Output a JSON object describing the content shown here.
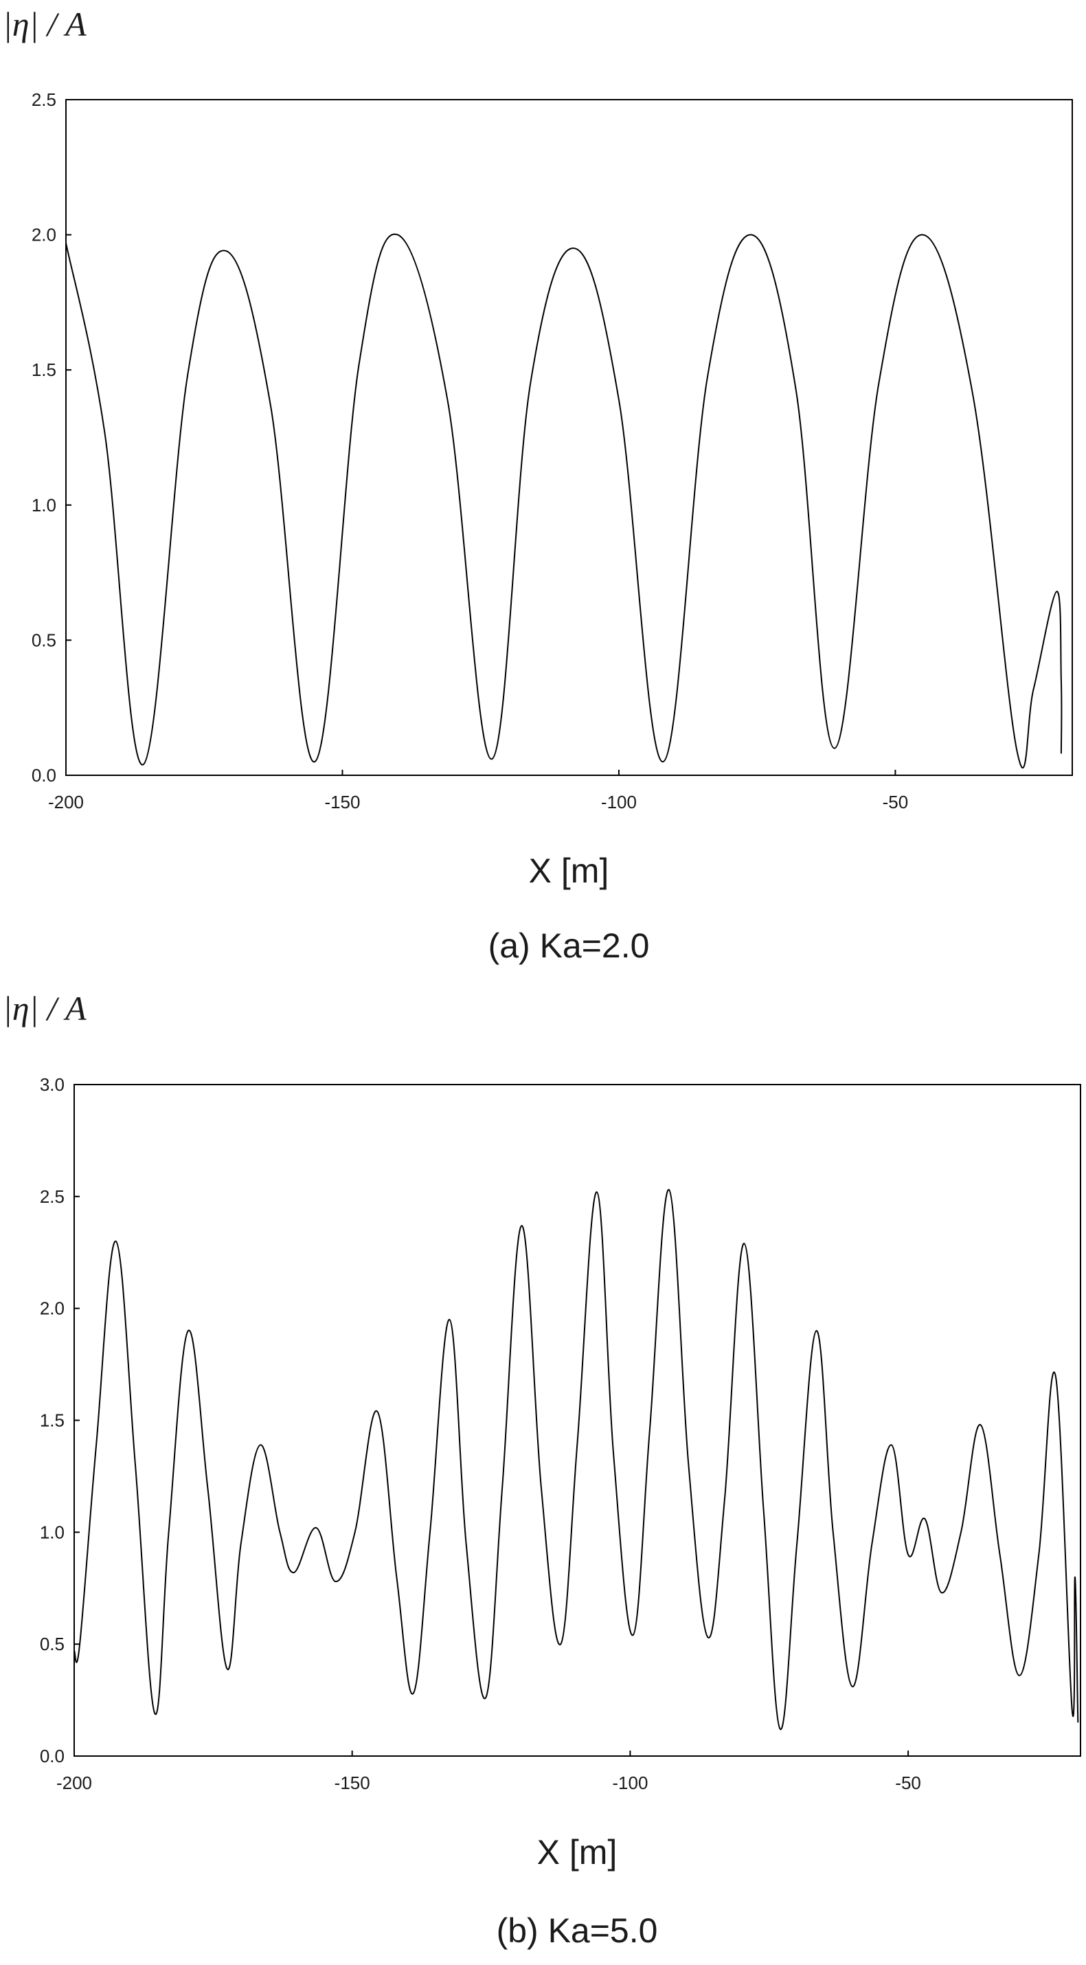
{
  "chart_data": [
    {
      "type": "line",
      "caption": "(a) Ka=2.0",
      "xlabel": "X [m]",
      "ylabel": "|η| / A",
      "xlim": [
        -200,
        -18
      ],
      "ylim": [
        0,
        2.5
      ],
      "xticks": [
        "-200",
        "-150",
        "-100",
        "-50"
      ],
      "xtick_values": [
        -200,
        -150,
        -100,
        -50
      ],
      "yticks": [
        "0.0",
        "0.5",
        "1.0",
        "1.5",
        "2.0",
        "2.5"
      ],
      "ytick_values": [
        0,
        0.5,
        1.0,
        1.5,
        2.0,
        2.5
      ],
      "grid": false,
      "series": [
        {
          "x": [
            -200,
            -193,
            -186,
            -178,
            -171,
            -163,
            -155,
            -147,
            -140,
            -131,
            -123,
            -116,
            -108,
            -100,
            -92,
            -84,
            -76,
            -68,
            -61,
            -53,
            -45,
            -36,
            -28,
            -25,
            -20.8,
            -20,
            -20
          ],
          "y": [
            1.97,
            1.27,
            0.04,
            1.48,
            1.94,
            1.37,
            0.05,
            1.52,
            2.0,
            1.39,
            0.06,
            1.45,
            1.95,
            1.39,
            0.05,
            1.47,
            2.0,
            1.43,
            0.1,
            1.45,
            2.0,
            1.41,
            0.09,
            0.32,
            0.68,
            0.35,
            0.08
          ]
        }
      ]
    },
    {
      "type": "line",
      "caption": "(b) Ka=5.0",
      "xlabel": "X [m]",
      "ylabel": "|η| / A",
      "xlim": [
        -200,
        -19
      ],
      "ylim": [
        0,
        3.0
      ],
      "xticks": [
        "-200",
        "-150",
        "-100",
        "-50"
      ],
      "xtick_values": [
        -200,
        -150,
        -100,
        -50
      ],
      "yticks": [
        "0.0",
        "0.5",
        "1.0",
        "1.5",
        "2.0",
        "2.5",
        "3.0"
      ],
      "ytick_values": [
        0,
        0.5,
        1.0,
        1.5,
        2.0,
        2.5,
        3.0
      ],
      "grid": false,
      "series": [
        {
          "x": [
            -200,
            -199,
            -196,
            -192.5,
            -189,
            -185.5,
            -183,
            -179.5,
            -176,
            -172.5,
            -170,
            -166.5,
            -163,
            -160.5,
            -156.5,
            -153,
            -149.5,
            -145.5,
            -142,
            -139,
            -136,
            -132.5,
            -129.5,
            -126,
            -123,
            -119.5,
            -116,
            -112.5,
            -109.5,
            -106,
            -103,
            -99.5,
            -96.5,
            -93,
            -89.5,
            -86,
            -83,
            -79.5,
            -76,
            -73,
            -70,
            -66.5,
            -63.5,
            -60,
            -56.5,
            -53,
            -50,
            -47,
            -44,
            -40.5,
            -37,
            -33.5,
            -30,
            -26.5,
            -23.5,
            -20.5,
            -20,
            -19.5,
            -19.5
          ],
          "y": [
            0.47,
            0.5,
            1.4,
            2.3,
            1.3,
            0.19,
            1.0,
            1.9,
            1.2,
            0.39,
            0.95,
            1.39,
            1.0,
            0.82,
            1.02,
            0.78,
            1.0,
            1.54,
            0.8,
            0.28,
            1.0,
            1.95,
            0.95,
            0.26,
            1.2,
            2.37,
            1.2,
            0.5,
            1.4,
            2.52,
            1.35,
            0.54,
            1.45,
            2.53,
            1.3,
            0.53,
            1.15,
            2.29,
            1.1,
            0.12,
            0.95,
            1.9,
            1.0,
            0.31,
            0.95,
            1.39,
            0.9,
            1.06,
            0.73,
            1.0,
            1.48,
            0.9,
            0.36,
            0.9,
            1.7,
            0.2,
            0.8,
            0.2,
            0.2
          ]
        }
      ]
    }
  ]
}
